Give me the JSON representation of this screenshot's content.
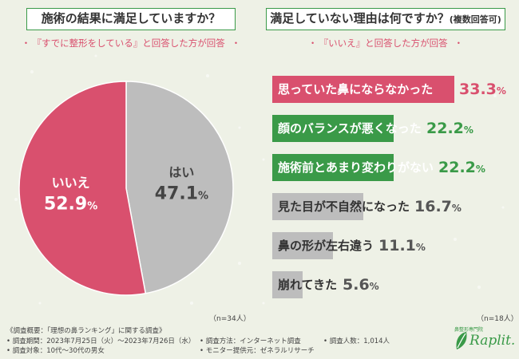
{
  "left": {
    "title": "施術の結果に満足していますか？",
    "subtitle": "『すでに整形をしている』と回答した方が回答",
    "n": "（n=34人）"
  },
  "right": {
    "title": "満足していない理由は何ですか？",
    "title_note": "(複数回答可)",
    "subtitle": "『いいえ』と回答した方が回答",
    "n": "（n=18人）"
  },
  "chart_data": [
    {
      "type": "pie",
      "title": "施術の結果に満足していますか？",
      "slices": [
        {
          "label": "いいえ",
          "value": 52.9,
          "color": "#d9506e"
        },
        {
          "label": "はい",
          "value": 47.1,
          "color": "#bdbdbd"
        }
      ]
    },
    {
      "type": "bar",
      "title": "満足していない理由は何ですか？(複数回答可)",
      "categories": [
        "思っていた鼻にならなかった",
        "顔のバランスが悪くなった",
        "施術前とあまり変わりがない",
        "見た目が不自然になった",
        "鼻の形が左右違う",
        "崩れてきた"
      ],
      "values": [
        33.3,
        22.2,
        22.2,
        16.7,
        11.1,
        5.6
      ],
      "colors": [
        "#d9506e",
        "#3a9a48",
        "#3a9a48",
        "#bdbdbd",
        "#bdbdbd",
        "#bdbdbd"
      ],
      "unit": "%"
    }
  ],
  "footer": {
    "summary": "《調査概要：「理想の鼻ランキング」に関する調査》",
    "period": "• 調査期間：2023年7月25日（火）〜2023年7月26日（水）",
    "target": "• 調査対象：10代〜30代の男女",
    "method": "• 調査方法：インターネット調査",
    "monitor": "• モニター提供元：ゼネラルリサーチ",
    "count": "• 調査人数：1,014人"
  },
  "brand": {
    "small": "鼻整形専門院",
    "name": "Raplit."
  }
}
